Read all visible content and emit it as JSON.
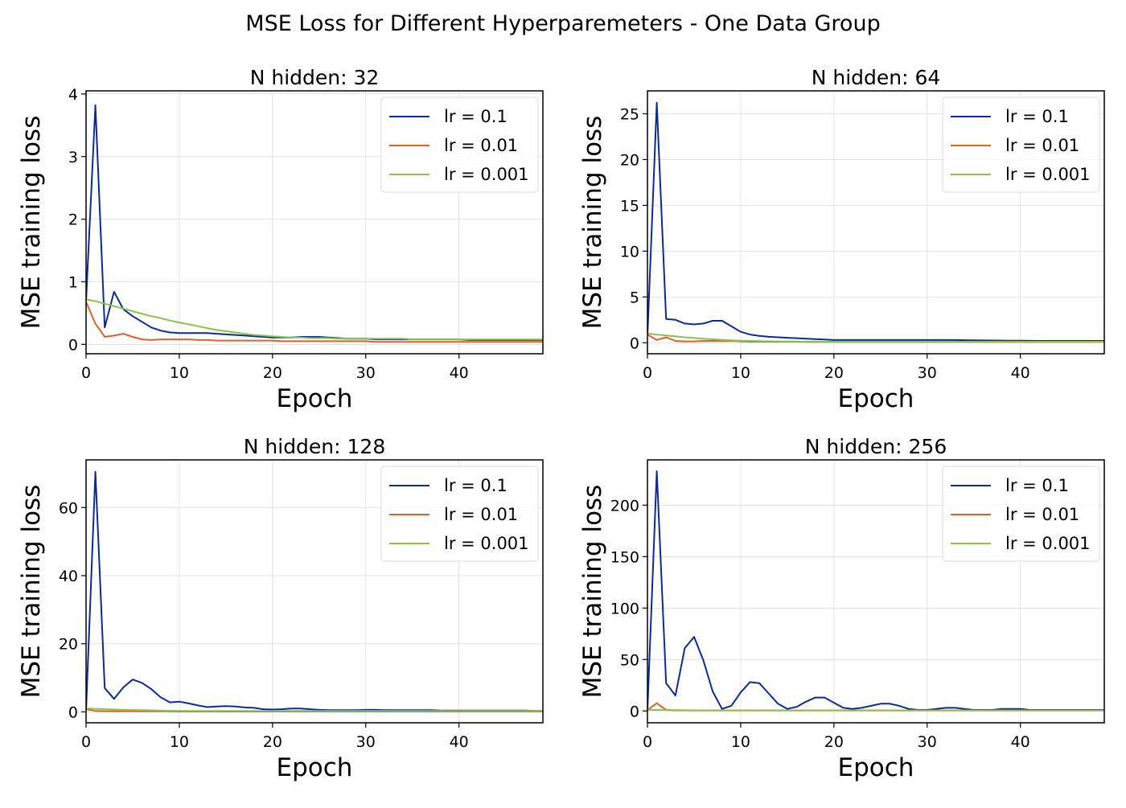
{
  "suptitle": "MSE Loss for Different Hyperparemeters - One Data Group",
  "colors": {
    "lr_0_1": "#0b2a9c",
    "lr_0_01": "#e0602a",
    "lr_0_001": "#8bc34a",
    "grid": "#dddddd",
    "axes": "#000000"
  },
  "chart_data": [
    {
      "type": "line",
      "title": "N hidden: 32",
      "xlabel": "Epoch",
      "ylabel": "MSE training loss",
      "xlim": [
        0,
        49
      ],
      "ylim": [
        -0.15,
        4.05
      ],
      "xticks": [
        0,
        10,
        20,
        30,
        40
      ],
      "yticks": [
        0,
        1,
        2,
        3,
        4
      ],
      "grid": true,
      "legend_position": "upper right",
      "x": [
        0,
        1,
        2,
        3,
        4,
        5,
        6,
        7,
        8,
        9,
        10,
        11,
        12,
        13,
        14,
        15,
        16,
        17,
        18,
        19,
        20,
        21,
        22,
        23,
        24,
        25,
        26,
        27,
        28,
        29,
        30,
        31,
        32,
        33,
        34,
        35,
        36,
        37,
        38,
        39,
        40,
        41,
        42,
        43,
        44,
        45,
        46,
        47,
        48,
        49
      ],
      "series": [
        {
          "name": "lr = 0.1",
          "color_key": "lr_0_1",
          "values": [
            0.7,
            3.82,
            0.27,
            0.84,
            0.56,
            0.45,
            0.36,
            0.27,
            0.22,
            0.19,
            0.18,
            0.18,
            0.18,
            0.18,
            0.17,
            0.16,
            0.15,
            0.14,
            0.13,
            0.12,
            0.11,
            0.11,
            0.11,
            0.12,
            0.12,
            0.12,
            0.11,
            0.1,
            0.09,
            0.09,
            0.09,
            0.08,
            0.08,
            0.08,
            0.08,
            0.08,
            0.08,
            0.08,
            0.08,
            0.08,
            0.08,
            0.07,
            0.07,
            0.07,
            0.07,
            0.07,
            0.07,
            0.07,
            0.07,
            0.07
          ]
        },
        {
          "name": "lr = 0.01",
          "color_key": "lr_0_01",
          "values": [
            0.68,
            0.33,
            0.12,
            0.14,
            0.17,
            0.12,
            0.08,
            0.07,
            0.08,
            0.08,
            0.08,
            0.08,
            0.07,
            0.07,
            0.06,
            0.06,
            0.06,
            0.06,
            0.06,
            0.06,
            0.06,
            0.05,
            0.05,
            0.05,
            0.05,
            0.05,
            0.05,
            0.05,
            0.05,
            0.05,
            0.05,
            0.04,
            0.04,
            0.04,
            0.04,
            0.04,
            0.04,
            0.04,
            0.04,
            0.04,
            0.04,
            0.04,
            0.04,
            0.04,
            0.04,
            0.04,
            0.04,
            0.04,
            0.04,
            0.04
          ]
        },
        {
          "name": "lr = 0.001",
          "color_key": "lr_0_001",
          "values": [
            0.72,
            0.69,
            0.65,
            0.61,
            0.57,
            0.53,
            0.49,
            0.45,
            0.42,
            0.38,
            0.35,
            0.32,
            0.29,
            0.26,
            0.23,
            0.21,
            0.19,
            0.17,
            0.15,
            0.14,
            0.13,
            0.12,
            0.11,
            0.11,
            0.1,
            0.1,
            0.1,
            0.09,
            0.09,
            0.09,
            0.09,
            0.09,
            0.09,
            0.09,
            0.09,
            0.08,
            0.08,
            0.08,
            0.08,
            0.08,
            0.08,
            0.08,
            0.08,
            0.08,
            0.08,
            0.08,
            0.08,
            0.08,
            0.08,
            0.08
          ]
        }
      ]
    },
    {
      "type": "line",
      "title": "N hidden: 64",
      "xlabel": "Epoch",
      "ylabel": "MSE training loss",
      "xlim": [
        0,
        49
      ],
      "ylim": [
        -1.2,
        27.5
      ],
      "xticks": [
        0,
        10,
        20,
        30,
        40
      ],
      "yticks": [
        0,
        5,
        10,
        15,
        20,
        25
      ],
      "grid": true,
      "legend_position": "upper right",
      "x": [
        0,
        1,
        2,
        3,
        4,
        5,
        6,
        7,
        8,
        9,
        10,
        11,
        12,
        13,
        14,
        15,
        16,
        17,
        18,
        19,
        20,
        21,
        22,
        23,
        24,
        25,
        26,
        27,
        28,
        29,
        30,
        31,
        32,
        33,
        34,
        35,
        36,
        37,
        38,
        39,
        40,
        41,
        42,
        43,
        44,
        45,
        46,
        47,
        48,
        49
      ],
      "series": [
        {
          "name": "lr = 0.1",
          "color_key": "lr_0_1",
          "values": [
            0.8,
            26.2,
            2.6,
            2.5,
            2.1,
            2.0,
            2.1,
            2.4,
            2.4,
            1.8,
            1.2,
            0.9,
            0.75,
            0.65,
            0.6,
            0.55,
            0.5,
            0.45,
            0.4,
            0.35,
            0.3,
            0.3,
            0.3,
            0.3,
            0.3,
            0.3,
            0.3,
            0.3,
            0.3,
            0.3,
            0.3,
            0.3,
            0.3,
            0.3,
            0.28,
            0.27,
            0.26,
            0.25,
            0.24,
            0.23,
            0.22,
            0.21,
            0.2,
            0.2,
            0.2,
            0.2,
            0.2,
            0.2,
            0.2,
            0.2
          ]
        },
        {
          "name": "lr = 0.01",
          "color_key": "lr_0_01",
          "values": [
            0.9,
            0.3,
            0.6,
            0.2,
            0.15,
            0.15,
            0.2,
            0.2,
            0.2,
            0.2,
            0.15,
            0.12,
            0.12,
            0.12,
            0.12,
            0.12,
            0.12,
            0.1,
            0.1,
            0.1,
            0.1,
            0.1,
            0.1,
            0.1,
            0.1,
            0.1,
            0.1,
            0.1,
            0.1,
            0.1,
            0.1,
            0.1,
            0.1,
            0.1,
            0.1,
            0.1,
            0.1,
            0.1,
            0.1,
            0.1,
            0.1,
            0.1,
            0.1,
            0.1,
            0.1,
            0.1,
            0.1,
            0.1,
            0.1,
            0.1
          ]
        },
        {
          "name": "lr = 0.001",
          "color_key": "lr_0_001",
          "values": [
            1.0,
            0.9,
            0.8,
            0.7,
            0.6,
            0.52,
            0.45,
            0.38,
            0.32,
            0.27,
            0.23,
            0.2,
            0.18,
            0.16,
            0.15,
            0.14,
            0.13,
            0.12,
            0.12,
            0.12,
            0.12,
            0.12,
            0.12,
            0.12,
            0.12,
            0.12,
            0.12,
            0.12,
            0.12,
            0.12,
            0.12,
            0.12,
            0.12,
            0.12,
            0.12,
            0.12,
            0.12,
            0.12,
            0.12,
            0.12,
            0.12,
            0.12,
            0.12,
            0.12,
            0.12,
            0.12,
            0.12,
            0.12,
            0.12,
            0.12
          ]
        }
      ]
    },
    {
      "type": "line",
      "title": "N hidden: 128",
      "xlabel": "Epoch",
      "ylabel": "MSE training loss",
      "xlim": [
        0,
        49
      ],
      "ylim": [
        -3.2,
        74
      ],
      "xticks": [
        0,
        10,
        20,
        30,
        40
      ],
      "yticks": [
        0,
        20,
        40,
        60
      ],
      "grid": true,
      "legend_position": "upper right",
      "x": [
        0,
        1,
        2,
        3,
        4,
        5,
        6,
        7,
        8,
        9,
        10,
        11,
        12,
        13,
        14,
        15,
        16,
        17,
        18,
        19,
        20,
        21,
        22,
        23,
        24,
        25,
        26,
        27,
        28,
        29,
        30,
        31,
        32,
        33,
        34,
        35,
        36,
        37,
        38,
        39,
        40,
        41,
        42,
        43,
        44,
        45,
        46,
        47,
        48,
        49
      ],
      "series": [
        {
          "name": "lr = 0.1",
          "color_key": "lr_0_1",
          "values": [
            0.5,
            70.5,
            7.0,
            3.8,
            7.2,
            9.5,
            8.5,
            6.7,
            4.3,
            2.8,
            3.0,
            2.5,
            1.9,
            1.4,
            1.6,
            1.7,
            1.6,
            1.3,
            1.2,
            0.8,
            0.7,
            0.8,
            1.0,
            1.0,
            0.8,
            0.6,
            0.5,
            0.5,
            0.5,
            0.5,
            0.6,
            0.6,
            0.5,
            0.5,
            0.5,
            0.5,
            0.5,
            0.5,
            0.4,
            0.4,
            0.4,
            0.4,
            0.4,
            0.4,
            0.4,
            0.4,
            0.4,
            0.4,
            0.3,
            0.3
          ]
        },
        {
          "name": "lr = 0.01",
          "color_key": "lr_0_01",
          "values": [
            0.8,
            0.3,
            0.2,
            0.2,
            0.2,
            0.2,
            0.15,
            0.15,
            0.15,
            0.15,
            0.1,
            0.1,
            0.1,
            0.1,
            0.1,
            0.1,
            0.1,
            0.1,
            0.1,
            0.1,
            0.1,
            0.1,
            0.1,
            0.1,
            0.1,
            0.1,
            0.1,
            0.1,
            0.1,
            0.1,
            0.1,
            0.1,
            0.1,
            0.1,
            0.1,
            0.1,
            0.1,
            0.1,
            0.1,
            0.1,
            0.1,
            0.1,
            0.1,
            0.1,
            0.1,
            0.1,
            0.1,
            0.1,
            0.1,
            0.1
          ]
        },
        {
          "name": "lr = 0.001",
          "color_key": "lr_0_001",
          "values": [
            1.0,
            0.9,
            0.8,
            0.7,
            0.6,
            0.55,
            0.5,
            0.45,
            0.4,
            0.35,
            0.3,
            0.3,
            0.3,
            0.3,
            0.3,
            0.3,
            0.3,
            0.3,
            0.3,
            0.3,
            0.3,
            0.3,
            0.3,
            0.3,
            0.3,
            0.3,
            0.3,
            0.3,
            0.3,
            0.3,
            0.3,
            0.3,
            0.3,
            0.3,
            0.3,
            0.3,
            0.3,
            0.3,
            0.3,
            0.3,
            0.3,
            0.3,
            0.3,
            0.3,
            0.3,
            0.3,
            0.3,
            0.3,
            0.3,
            0.3
          ]
        }
      ]
    },
    {
      "type": "line",
      "title": "N hidden: 256",
      "xlabel": "Epoch",
      "ylabel": "MSE training loss",
      "xlim": [
        0,
        49
      ],
      "ylim": [
        -11.5,
        244
      ],
      "xticks": [
        0,
        10,
        20,
        30,
        40
      ],
      "yticks": [
        0,
        50,
        100,
        150,
        200
      ],
      "grid": true,
      "legend_position": "upper right",
      "x": [
        0,
        1,
        2,
        3,
        4,
        5,
        6,
        7,
        8,
        9,
        10,
        11,
        12,
        13,
        14,
        15,
        16,
        17,
        18,
        19,
        20,
        21,
        22,
        23,
        24,
        25,
        26,
        27,
        28,
        29,
        30,
        31,
        32,
        33,
        34,
        35,
        36,
        37,
        38,
        39,
        40,
        41,
        42,
        43,
        44,
        45,
        46,
        47,
        48,
        49
      ],
      "series": [
        {
          "name": "lr = 0.1",
          "color_key": "lr_0_1",
          "values": [
            1,
            233,
            27,
            15,
            61,
            72,
            49,
            19,
            2,
            5,
            18,
            28,
            27,
            17,
            7,
            2,
            4,
            9,
            13,
            13,
            8,
            3,
            2,
            3,
            5,
            7,
            7,
            5,
            2,
            1,
            1,
            2,
            3,
            3,
            2,
            1,
            1,
            1,
            2,
            2,
            2,
            1,
            1,
            1,
            1,
            1,
            1,
            1,
            1,
            1
          ]
        },
        {
          "name": "lr = 0.01",
          "color_key": "lr_0_01",
          "values": [
            1,
            7.5,
            1,
            0.5,
            0.5,
            0.5,
            0.5,
            0.5,
            0.5,
            0.5,
            0.5,
            0.5,
            0.5,
            0.5,
            0.5,
            0.5,
            0.5,
            0.5,
            0.5,
            0.5,
            0.5,
            0.5,
            0.5,
            0.5,
            0.5,
            0.5,
            0.5,
            0.5,
            0.5,
            0.5,
            0.5,
            0.5,
            0.5,
            0.5,
            0.5,
            0.5,
            0.5,
            0.5,
            0.5,
            0.5,
            0.5,
            0.5,
            0.5,
            0.5,
            0.5,
            0.5,
            0.5,
            0.5,
            0.5,
            0.5
          ]
        },
        {
          "name": "lr = 0.001",
          "color_key": "lr_0_001",
          "values": [
            1,
            1,
            0.9,
            0.8,
            0.7,
            0.6,
            0.5,
            0.5,
            0.5,
            0.5,
            0.5,
            0.5,
            0.5,
            0.5,
            0.5,
            0.5,
            0.5,
            0.5,
            0.5,
            0.5,
            0.5,
            0.5,
            0.5,
            0.5,
            0.5,
            0.5,
            0.5,
            0.5,
            0.5,
            0.5,
            0.5,
            0.5,
            0.5,
            0.5,
            0.5,
            0.5,
            0.5,
            0.5,
            0.5,
            0.5,
            0.5,
            0.5,
            0.5,
            0.5,
            0.5,
            0.5,
            0.5,
            0.5,
            0.5,
            0.5
          ]
        }
      ]
    }
  ]
}
